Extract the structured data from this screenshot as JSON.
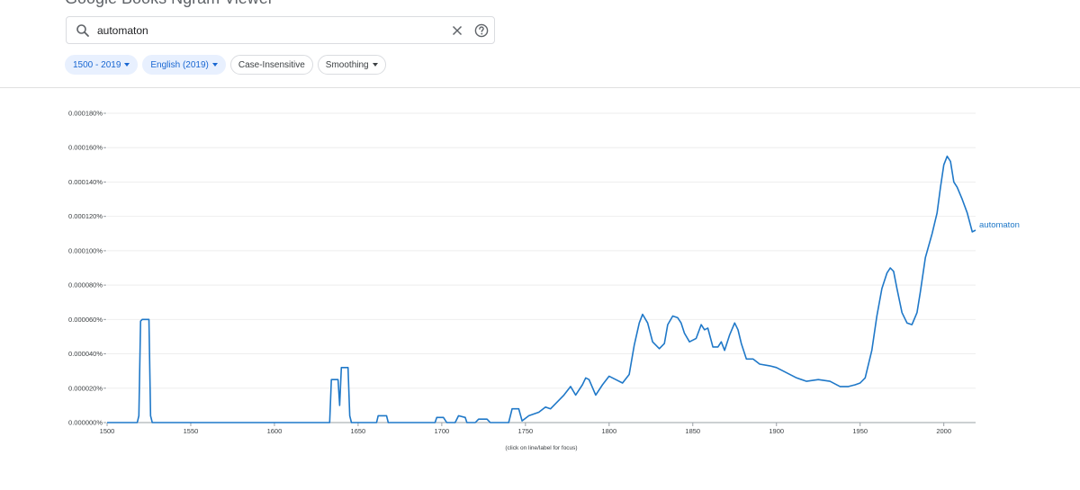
{
  "header": {
    "title": "Google Books Ngram Viewer"
  },
  "search": {
    "value": "automaton"
  },
  "filters": {
    "years": "1500 - 2019",
    "corpus": "English (2019)",
    "case": "Case-Insensitive",
    "smoothing": "Smoothing"
  },
  "colors": {
    "line": "#1f78c8",
    "chip_active_bg": "#e8f0fe",
    "chip_active_text": "#1967d2"
  },
  "chart_data": {
    "type": "line",
    "xlabel": "",
    "ylabel": "",
    "xlim": [
      1500,
      2019
    ],
    "ylim": [
      0,
      0.00018
    ],
    "grid": true,
    "x_ticks": [
      "1500",
      "1550",
      "1600",
      "1650",
      "1700",
      "1750",
      "1800",
      "1850",
      "1900",
      "1950",
      "2000"
    ],
    "y_ticks": [
      "0.000000%",
      "0.000020%",
      "0.000040%",
      "0.000060%",
      "0.000080%",
      "0.000100%",
      "0.000120%",
      "0.000140%",
      "0.000160%",
      "0.000180%"
    ],
    "series": [
      {
        "name": "automaton",
        "points": [
          [
            1500,
            0
          ],
          [
            1518,
            0
          ],
          [
            1519,
            4e-06
          ],
          [
            1520,
            5.9e-05
          ],
          [
            1521,
            6e-05
          ],
          [
            1525,
            6e-05
          ],
          [
            1526,
            4e-06
          ],
          [
            1527,
            0
          ],
          [
            1633,
            0
          ],
          [
            1634,
            2.5e-05
          ],
          [
            1638,
            2.5e-05
          ],
          [
            1639,
            1e-05
          ],
          [
            1640,
            3.2e-05
          ],
          [
            1644,
            3.2e-05
          ],
          [
            1645,
            4e-06
          ],
          [
            1646,
            0
          ],
          [
            1661,
            0
          ],
          [
            1662,
            4e-06
          ],
          [
            1667,
            4e-06
          ],
          [
            1668,
            0
          ],
          [
            1696,
            0
          ],
          [
            1697,
            3e-06
          ],
          [
            1701,
            3e-06
          ],
          [
            1703,
            0
          ],
          [
            1708,
            0
          ],
          [
            1710,
            4e-06
          ],
          [
            1714,
            3e-06
          ],
          [
            1715,
            0
          ],
          [
            1720,
            0
          ],
          [
            1722,
            2e-06
          ],
          [
            1727,
            2e-06
          ],
          [
            1729,
            0
          ],
          [
            1740,
            0
          ],
          [
            1742,
            8e-06
          ],
          [
            1746,
            8e-06
          ],
          [
            1748,
            1e-06
          ],
          [
            1752,
            4e-06
          ],
          [
            1758,
            6e-06
          ],
          [
            1762,
            9e-06
          ],
          [
            1765,
            8e-06
          ],
          [
            1770,
            1.3e-05
          ],
          [
            1773,
            1.6e-05
          ],
          [
            1777,
            2.1e-05
          ],
          [
            1780,
            1.6e-05
          ],
          [
            1784,
            2.2e-05
          ],
          [
            1786,
            2.6e-05
          ],
          [
            1788,
            2.5e-05
          ],
          [
            1792,
            1.6e-05
          ],
          [
            1796,
            2.2e-05
          ],
          [
            1800,
            2.7e-05
          ],
          [
            1804,
            2.5e-05
          ],
          [
            1808,
            2.3e-05
          ],
          [
            1812,
            2.8e-05
          ],
          [
            1815,
            4.5e-05
          ],
          [
            1818,
            5.8e-05
          ],
          [
            1820,
            6.3e-05
          ],
          [
            1823,
            5.8e-05
          ],
          [
            1826,
            4.7e-05
          ],
          [
            1830,
            4.3e-05
          ],
          [
            1833,
            4.6e-05
          ],
          [
            1835,
            5.7e-05
          ],
          [
            1838,
            6.2e-05
          ],
          [
            1841,
            6.1e-05
          ],
          [
            1843,
            5.8e-05
          ],
          [
            1845,
            5.2e-05
          ],
          [
            1848,
            4.7e-05
          ],
          [
            1852,
            4.9e-05
          ],
          [
            1855,
            5.7e-05
          ],
          [
            1857,
            5.4e-05
          ],
          [
            1859,
            5.5e-05
          ],
          [
            1862,
            4.4e-05
          ],
          [
            1865,
            4.4e-05
          ],
          [
            1867,
            4.7e-05
          ],
          [
            1869,
            4.2e-05
          ],
          [
            1872,
            5.1e-05
          ],
          [
            1875,
            5.8e-05
          ],
          [
            1877,
            5.4e-05
          ],
          [
            1879,
            4.6e-05
          ],
          [
            1882,
            3.7e-05
          ],
          [
            1886,
            3.7e-05
          ],
          [
            1890,
            3.4e-05
          ],
          [
            1896,
            3.3e-05
          ],
          [
            1900,
            3.2e-05
          ],
          [
            1906,
            2.9e-05
          ],
          [
            1912,
            2.6e-05
          ],
          [
            1918,
            2.4e-05
          ],
          [
            1925,
            2.5e-05
          ],
          [
            1932,
            2.4e-05
          ],
          [
            1938,
            2.1e-05
          ],
          [
            1943,
            2.1e-05
          ],
          [
            1947,
            2.2e-05
          ],
          [
            1950,
            2.3e-05
          ],
          [
            1953,
            2.6e-05
          ],
          [
            1957,
            4.2e-05
          ],
          [
            1960,
            6.2e-05
          ],
          [
            1963,
            7.8e-05
          ],
          [
            1966,
            8.7e-05
          ],
          [
            1968,
            9e-05
          ],
          [
            1970,
            8.8e-05
          ],
          [
            1972,
            7.8e-05
          ],
          [
            1975,
            6.4e-05
          ],
          [
            1978,
            5.8e-05
          ],
          [
            1981,
            5.7e-05
          ],
          [
            1984,
            6.4e-05
          ],
          [
            1986,
            7.6e-05
          ],
          [
            1989,
            9.6e-05
          ],
          [
            1993,
            0.00011
          ],
          [
            1996,
            0.000122
          ],
          [
            1998,
            0.000137
          ],
          [
            2000,
            0.00015
          ],
          [
            2002,
            0.000155
          ],
          [
            2004,
            0.000152
          ],
          [
            2006,
            0.00014
          ],
          [
            2008,
            0.000137
          ],
          [
            2011,
            0.00013
          ],
          [
            2014,
            0.000122
          ],
          [
            2017,
            0.000111
          ],
          [
            2019,
            0.000112
          ]
        ]
      }
    ],
    "note": "(click on line/label for focus)"
  }
}
